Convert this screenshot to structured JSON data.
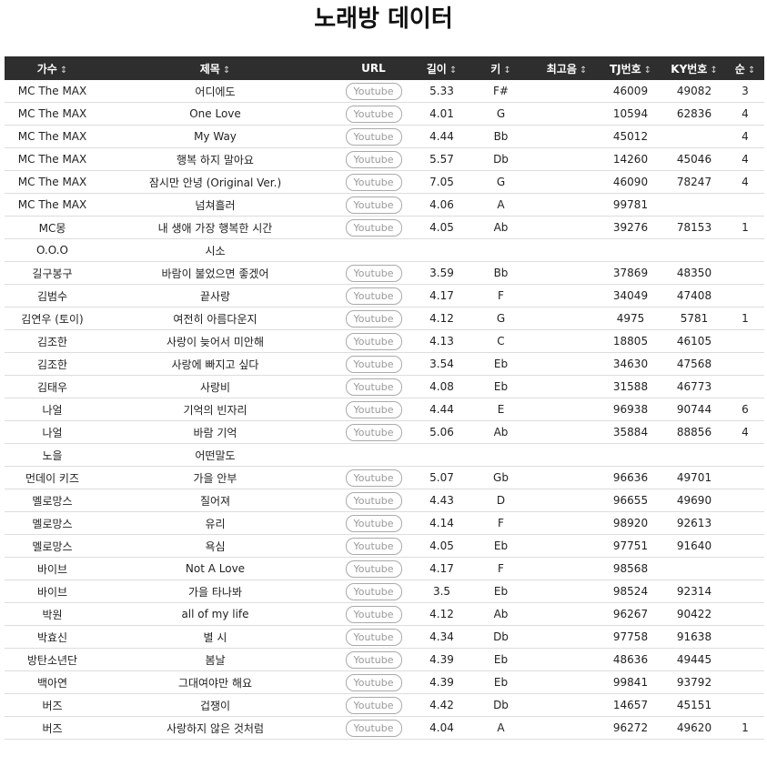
{
  "page": {
    "title": "노래방 데이터"
  },
  "headers": [
    {
      "label": "가수",
      "sortable": true
    },
    {
      "label": "제목",
      "sortable": true
    },
    {
      "label": "URL",
      "sortable": false
    },
    {
      "label": "길이",
      "sortable": true
    },
    {
      "label": "키",
      "sortable": true
    },
    {
      "label": "최고음",
      "sortable": true
    },
    {
      "label": "TJ번호",
      "sortable": true
    },
    {
      "label": "KY번호",
      "sortable": true
    },
    {
      "label": "순",
      "sortable": true
    }
  ],
  "youtube_label": "Youtube",
  "sort_icon": "↕",
  "rows": [
    {
      "artist": "MC The MAX",
      "title": "어디에도",
      "url": true,
      "length": "5.33",
      "key": "F#",
      "highest": "",
      "tj": "46009",
      "ky": "49082",
      "rank": "3"
    },
    {
      "artist": "MC The MAX",
      "title": "One Love",
      "url": true,
      "length": "4.01",
      "key": "G",
      "highest": "",
      "tj": "10594",
      "ky": "62836",
      "rank": "4"
    },
    {
      "artist": "MC The MAX",
      "title": "My Way",
      "url": true,
      "length": "4.44",
      "key": "Bb",
      "highest": "",
      "tj": "45012",
      "ky": "",
      "rank": "4"
    },
    {
      "artist": "MC The MAX",
      "title": "행복 하지 말아요",
      "url": true,
      "length": "5.57",
      "key": "Db",
      "highest": "",
      "tj": "14260",
      "ky": "45046",
      "rank": "4"
    },
    {
      "artist": "MC The MAX",
      "title": "잠시만 안녕 (Original Ver.)",
      "url": true,
      "length": "7.05",
      "key": "G",
      "highest": "",
      "tj": "46090",
      "ky": "78247",
      "rank": "4"
    },
    {
      "artist": "MC The MAX",
      "title": "넘쳐흘러",
      "url": true,
      "length": "4.06",
      "key": "A",
      "highest": "",
      "tj": "99781",
      "ky": "",
      "rank": ""
    },
    {
      "artist": "MC몽",
      "title": "내 생애 가장 행복한 시간",
      "url": true,
      "length": "4.05",
      "key": "Ab",
      "highest": "",
      "tj": "39276",
      "ky": "78153",
      "rank": "1"
    },
    {
      "artist": "O.O.O",
      "title": "시소",
      "url": false,
      "length": "",
      "key": "",
      "highest": "",
      "tj": "",
      "ky": "",
      "rank": ""
    },
    {
      "artist": "길구봉구",
      "title": "바람이 불었으면 좋겠어",
      "url": true,
      "length": "3.59",
      "key": "Bb",
      "highest": "",
      "tj": "37869",
      "ky": "48350",
      "rank": ""
    },
    {
      "artist": "김범수",
      "title": "끝사랑",
      "url": true,
      "length": "4.17",
      "key": "F",
      "highest": "",
      "tj": "34049",
      "ky": "47408",
      "rank": ""
    },
    {
      "artist": "김연우 (토이)",
      "title": "여전히 아름다운지",
      "url": true,
      "length": "4.12",
      "key": "G",
      "highest": "",
      "tj": "4975",
      "ky": "5781",
      "rank": "1"
    },
    {
      "artist": "김조한",
      "title": "사랑이 늦어서 미안해",
      "url": true,
      "length": "4.13",
      "key": "C",
      "highest": "",
      "tj": "18805",
      "ky": "46105",
      "rank": ""
    },
    {
      "artist": "김조한",
      "title": "사랑에 빠지고 싶다",
      "url": true,
      "length": "3.54",
      "key": "Eb",
      "highest": "",
      "tj": "34630",
      "ky": "47568",
      "rank": ""
    },
    {
      "artist": "김태우",
      "title": "사랑비",
      "url": true,
      "length": "4.08",
      "key": "Eb",
      "highest": "",
      "tj": "31588",
      "ky": "46773",
      "rank": ""
    },
    {
      "artist": "나얼",
      "title": "기억의 빈자리",
      "url": true,
      "length": "4.44",
      "key": "E",
      "highest": "",
      "tj": "96938",
      "ky": "90744",
      "rank": "6"
    },
    {
      "artist": "나얼",
      "title": "바람 기억",
      "url": true,
      "length": "5.06",
      "key": "Ab",
      "highest": "",
      "tj": "35884",
      "ky": "88856",
      "rank": "4"
    },
    {
      "artist": "노을",
      "title": "어떤말도",
      "url": false,
      "length": "",
      "key": "",
      "highest": "",
      "tj": "",
      "ky": "",
      "rank": ""
    },
    {
      "artist": "먼데이 키즈",
      "title": "가을 안부",
      "url": true,
      "length": "5.07",
      "key": "Gb",
      "highest": "",
      "tj": "96636",
      "ky": "49701",
      "rank": ""
    },
    {
      "artist": "멜로망스",
      "title": "질어져",
      "url": true,
      "length": "4.43",
      "key": "D",
      "highest": "",
      "tj": "96655",
      "ky": "49690",
      "rank": ""
    },
    {
      "artist": "멜로망스",
      "title": "유리",
      "url": true,
      "length": "4.14",
      "key": "F",
      "highest": "",
      "tj": "98920",
      "ky": "92613",
      "rank": ""
    },
    {
      "artist": "멜로망스",
      "title": "욕심",
      "url": true,
      "length": "4.05",
      "key": "Eb",
      "highest": "",
      "tj": "97751",
      "ky": "91640",
      "rank": ""
    },
    {
      "artist": "바이브",
      "title": "Not A Love",
      "url": true,
      "length": "4.17",
      "key": "F",
      "highest": "",
      "tj": "98568",
      "ky": "",
      "rank": ""
    },
    {
      "artist": "바이브",
      "title": "가을 타나봐",
      "url": true,
      "length": "3.5",
      "key": "Eb",
      "highest": "",
      "tj": "98524",
      "ky": "92314",
      "rank": ""
    },
    {
      "artist": "박원",
      "title": "all of my life",
      "url": true,
      "length": "4.12",
      "key": "Ab",
      "highest": "",
      "tj": "96267",
      "ky": "90422",
      "rank": ""
    },
    {
      "artist": "박효신",
      "title": "별 시",
      "url": true,
      "length": "4.34",
      "key": "Db",
      "highest": "",
      "tj": "97758",
      "ky": "91638",
      "rank": ""
    },
    {
      "artist": "방탄소년단",
      "title": "봄날",
      "url": true,
      "length": "4.39",
      "key": "Eb",
      "highest": "",
      "tj": "48636",
      "ky": "49445",
      "rank": ""
    },
    {
      "artist": "백아연",
      "title": "그대여야만 해요",
      "url": true,
      "length": "4.39",
      "key": "Eb",
      "highest": "",
      "tj": "99841",
      "ky": "93792",
      "rank": ""
    },
    {
      "artist": "버즈",
      "title": "겁쟁이",
      "url": true,
      "length": "4.42",
      "key": "Db",
      "highest": "",
      "tj": "14657",
      "ky": "45151",
      "rank": ""
    },
    {
      "artist": "버즈",
      "title": "사랑하지 않은 것처럼",
      "url": true,
      "length": "4.04",
      "key": "A",
      "highest": "",
      "tj": "96272",
      "ky": "49620",
      "rank": "1"
    }
  ]
}
